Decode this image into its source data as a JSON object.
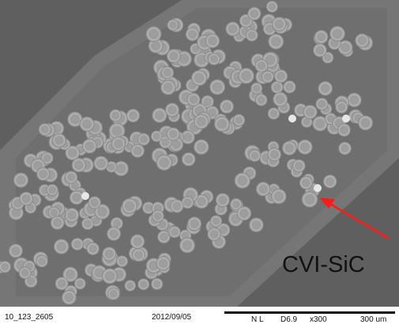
{
  "image": {
    "annotation_label": "CVI-SiC",
    "annotation_color": "#ff1a1a",
    "background_color": "#5e5e5e",
    "band_color": "#727272",
    "fiber_color": "#a9a9a9",
    "fiber_core_color": "#9c9c9c"
  },
  "info_bar": {
    "sample_id": "10_123_2605",
    "date": "2012/09/05",
    "mode": "N L",
    "working_distance": "D6.9",
    "magnification": "x300",
    "scale_label": "300 um"
  }
}
